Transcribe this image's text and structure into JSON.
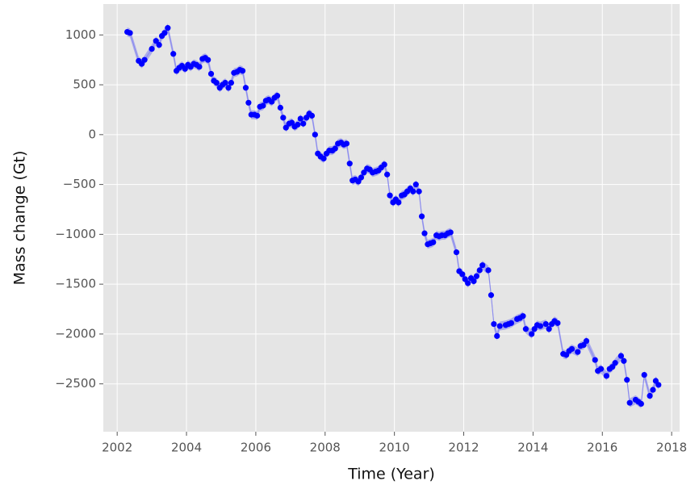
{
  "chart_data": {
    "type": "scatter",
    "xlabel": "Time (Year)",
    "ylabel": "Mass change (Gt)",
    "xlim": [
      2001.6,
      2018.23
    ],
    "ylim": [
      -2980,
      1310
    ],
    "xticks": [
      2002,
      2004,
      2006,
      2008,
      2010,
      2012,
      2014,
      2016,
      2018
    ],
    "yticks": [
      1000,
      500,
      0,
      {
        "value": -500,
        "label": "−500"
      },
      {
        "value": -1000,
        "label": "−1000"
      },
      {
        "value": -1500,
        "label": "−1500"
      },
      {
        "value": -2000,
        "label": "−2000"
      },
      {
        "value": -2500,
        "label": "−2500"
      }
    ],
    "grid": true,
    "series": [
      {
        "color": "#0000ff",
        "band_color": "#7b7bf0",
        "error": 45,
        "x": [
          2002.29,
          2002.37,
          2002.62,
          2002.71,
          2002.79,
          2003.0,
          2003.12,
          2003.21,
          2003.29,
          2003.37,
          2003.46,
          2003.62,
          2003.71,
          2003.79,
          2003.87,
          2003.96,
          2004.04,
          2004.12,
          2004.21,
          2004.29,
          2004.37,
          2004.46,
          2004.54,
          2004.62,
          2004.71,
          2004.79,
          2004.87,
          2004.96,
          2005.04,
          2005.12,
          2005.21,
          2005.29,
          2005.37,
          2005.46,
          2005.54,
          2005.62,
          2005.71,
          2005.79,
          2005.87,
          2005.96,
          2006.04,
          2006.12,
          2006.21,
          2006.29,
          2006.37,
          2006.46,
          2006.54,
          2006.62,
          2006.71,
          2006.79,
          2006.87,
          2006.96,
          2007.04,
          2007.12,
          2007.21,
          2007.29,
          2007.37,
          2007.46,
          2007.54,
          2007.62,
          2007.71,
          2007.79,
          2007.87,
          2007.96,
          2008.04,
          2008.12,
          2008.21,
          2008.29,
          2008.37,
          2008.46,
          2008.54,
          2008.62,
          2008.71,
          2008.79,
          2008.87,
          2008.96,
          2009.04,
          2009.12,
          2009.21,
          2009.29,
          2009.37,
          2009.46,
          2009.54,
          2009.62,
          2009.71,
          2009.79,
          2009.87,
          2009.96,
          2010.04,
          2010.12,
          2010.21,
          2010.29,
          2010.37,
          2010.46,
          2010.54,
          2010.62,
          2010.71,
          2010.79,
          2010.87,
          2010.96,
          2011.04,
          2011.12,
          2011.21,
          2011.29,
          2011.37,
          2011.46,
          2011.54,
          2011.62,
          2011.79,
          2011.87,
          2011.96,
          2012.04,
          2012.12,
          2012.21,
          2012.29,
          2012.37,
          2012.46,
          2012.54,
          2012.71,
          2012.79,
          2012.87,
          2012.96,
          2013.04,
          2013.21,
          2013.29,
          2013.37,
          2013.54,
          2013.62,
          2013.71,
          2013.79,
          2013.96,
          2014.04,
          2014.12,
          2014.21,
          2014.37,
          2014.46,
          2014.54,
          2014.62,
          2014.71,
          2014.87,
          2014.96,
          2015.04,
          2015.12,
          2015.29,
          2015.37,
          2015.46,
          2015.54,
          2015.79,
          2015.87,
          2015.96,
          2016.12,
          2016.21,
          2016.29,
          2016.37,
          2016.54,
          2016.62,
          2016.71,
          2016.79,
          2016.96,
          2017.04,
          2017.12,
          2017.21,
          2017.37,
          2017.46,
          2017.54,
          2017.62
        ],
        "values": [
          1030,
          1020,
          740,
          710,
          750,
          860,
          940,
          900,
          990,
          1020,
          1070,
          810,
          640,
          670,
          690,
          660,
          700,
          680,
          710,
          700,
          680,
          760,
          770,
          750,
          610,
          540,
          520,
          470,
          500,
          520,
          470,
          520,
          620,
          630,
          650,
          640,
          470,
          320,
          200,
          200,
          190,
          280,
          290,
          340,
          350,
          330,
          370,
          390,
          270,
          170,
          70,
          110,
          120,
          80,
          100,
          160,
          110,
          170,
          210,
          190,
          0,
          -190,
          -220,
          -240,
          -190,
          -160,
          -160,
          -140,
          -90,
          -80,
          -100,
          -90,
          -290,
          -460,
          -450,
          -470,
          -430,
          -380,
          -340,
          -350,
          -380,
          -370,
          -360,
          -330,
          -300,
          -400,
          -610,
          -680,
          -650,
          -680,
          -610,
          -600,
          -570,
          -540,
          -570,
          -500,
          -570,
          -820,
          -990,
          -1100,
          -1090,
          -1080,
          -1010,
          -1020,
          -1010,
          -1010,
          -990,
          -980,
          -1180,
          -1370,
          -1400,
          -1450,
          -1490,
          -1440,
          -1470,
          -1420,
          -1360,
          -1310,
          -1360,
          -1610,
          -1900,
          -2020,
          -1920,
          -1910,
          -1900,
          -1890,
          -1850,
          -1840,
          -1820,
          -1950,
          -2000,
          -1950,
          -1910,
          -1920,
          -1900,
          -1950,
          -1900,
          -1870,
          -1890,
          -2200,
          -2210,
          -2170,
          -2150,
          -2180,
          -2120,
          -2110,
          -2070,
          -2260,
          -2370,
          -2350,
          -2420,
          -2350,
          -2330,
          -2290,
          -2220,
          -2270,
          -2460,
          -2690,
          -2660,
          -2680,
          -2700,
          -2410,
          -2620,
          -2560,
          -2470,
          -2510
        ]
      }
    ]
  }
}
